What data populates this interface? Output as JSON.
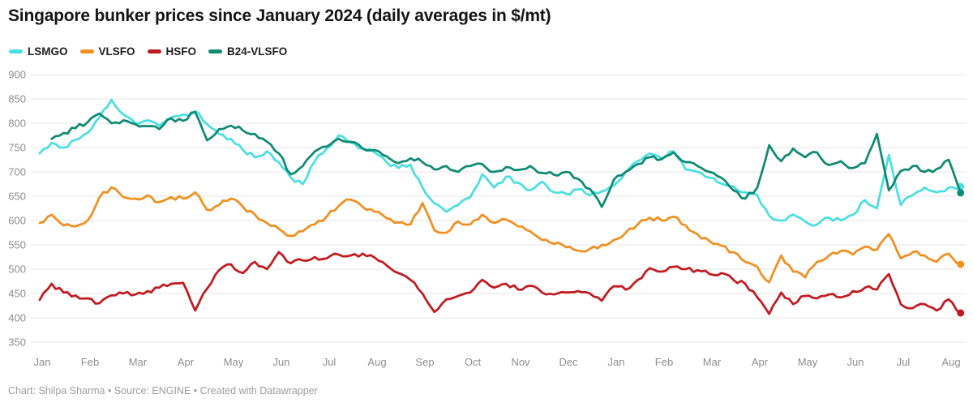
{
  "header": {
    "title": "Singapore bunker prices since January 2024 (daily averages in $/mt)"
  },
  "legend": [
    {
      "label": "LSMGO",
      "color": "#4adfe2"
    },
    {
      "label": "VLSFO",
      "color": "#f18f1f"
    },
    {
      "label": "HSFO",
      "color": "#c21a1f"
    },
    {
      "label": "B24-VLSFO",
      "color": "#0f8a73"
    }
  ],
  "footer": {
    "text": "Chart: Shilpa Sharma • Source: ENGINE • Created with Datawrapper"
  },
  "chart_data": {
    "type": "line",
    "title": "Singapore bunker prices since January 2024 (daily averages in $/mt)",
    "unit": "$/mt",
    "grid": true,
    "legend_position": "top-left",
    "x_axis": {
      "labels": [
        "Jan",
        "Feb",
        "Mar",
        "Apr",
        "May",
        "Jun",
        "Jul",
        "Aug",
        "Sep",
        "Oct",
        "Nov",
        "Dec",
        "Jan",
        "Feb",
        "Mar",
        "Apr",
        "May",
        "Jun",
        "Jul",
        "Aug"
      ],
      "range_note": "Jan 2024 through early Aug 2025, daily averages"
    },
    "y_axis": {
      "min": 350,
      "max": 900,
      "step": 50,
      "ticks": [
        900,
        850,
        800,
        750,
        700,
        650,
        600,
        550,
        500,
        450,
        400,
        350
      ]
    },
    "t_unit": "months since 2024-01-01, sampled about weekly",
    "series": [
      {
        "name": "LSMGO",
        "color": "#4adfe2",
        "t_start": 0.05,
        "t_step": 0.25,
        "end_value": 670,
        "values": [
          738,
          760,
          750,
          766,
          780,
          812,
          848,
          818,
          800,
          806,
          795,
          812,
          818,
          825,
          798,
          778,
          768,
          745,
          730,
          742,
          720,
          688,
          675,
          722,
          748,
          775,
          760,
          748,
          740,
          720,
          708,
          715,
          668,
          635,
          618,
          632,
          648,
          695,
          668,
          690,
          678,
          662,
          680,
          658,
          655,
          664,
          652,
          660,
          672,
          700,
          722,
          738,
          728,
          742,
          705,
          700,
          688,
          676,
          670,
          658,
          652,
          610,
          600,
          612,
          598,
          592,
          606,
          600,
          612,
          642,
          625,
          735,
          632,
          652,
          668,
          658,
          668,
          670
        ]
      },
      {
        "name": "VLSFO",
        "color": "#f18f1f",
        "t_start": 0.05,
        "t_step": 0.25,
        "end_value": 510,
        "values": [
          595,
          612,
          590,
          588,
          600,
          648,
          668,
          648,
          645,
          652,
          638,
          648,
          645,
          658,
          622,
          632,
          645,
          628,
          612,
          595,
          583,
          568,
          578,
          592,
          608,
          630,
          643,
          628,
          618,
          605,
          596,
          592,
          636,
          580,
          575,
          598,
          592,
          612,
          595,
          602,
          588,
          578,
          560,
          552,
          545,
          538,
          542,
          550,
          560,
          575,
          592,
          606,
          600,
          608,
          590,
          572,
          558,
          548,
          535,
          515,
          505,
          473,
          528,
          495,
          483,
          515,
          528,
          538,
          530,
          546,
          540,
          572,
          522,
          535,
          528,
          515,
          532,
          510
        ]
      },
      {
        "name": "HSFO",
        "color": "#c21a1f",
        "t_start": 0.05,
        "t_step": 0.25,
        "end_value": 410,
        "values": [
          437,
          470,
          452,
          446,
          440,
          430,
          446,
          450,
          448,
          455,
          462,
          470,
          472,
          415,
          460,
          498,
          510,
          492,
          515,
          500,
          535,
          512,
          518,
          525,
          522,
          530,
          528,
          532,
          524,
          508,
          492,
          478,
          450,
          412,
          438,
          445,
          452,
          478,
          462,
          470,
          458,
          466,
          452,
          448,
          452,
          455,
          450,
          435,
          465,
          458,
          478,
          502,
          495,
          505,
          500,
          498,
          490,
          492,
          478,
          470,
          442,
          408,
          452,
          428,
          445,
          440,
          448,
          442,
          455,
          462,
          458,
          490,
          428,
          420,
          428,
          415,
          438,
          410
        ]
      },
      {
        "name": "B24-VLSFO",
        "color": "#0f8a73",
        "t_start": 0.3,
        "t_step": 0.25,
        "end_value": 657,
        "values": [
          768,
          780,
          790,
          802,
          820,
          800,
          806,
          798,
          794,
          788,
          810,
          805,
          823,
          765,
          788,
          795,
          785,
          778,
          762,
          738,
          695,
          712,
          742,
          752,
          768,
          762,
          748,
          745,
          732,
          718,
          728,
          720,
          705,
          712,
          700,
          712,
          716,
          700,
          710,
          704,
          712,
          698,
          694,
          700,
          686,
          665,
          628,
          684,
          700,
          716,
          730,
          726,
          740,
          720,
          712,
          700,
          688,
          662,
          645,
          668,
          755,
          722,
          748,
          730,
          740,
          714,
          722,
          708,
          718,
          778,
          662,
          702,
          712,
          700,
          706,
          725,
          657
        ]
      }
    ]
  }
}
